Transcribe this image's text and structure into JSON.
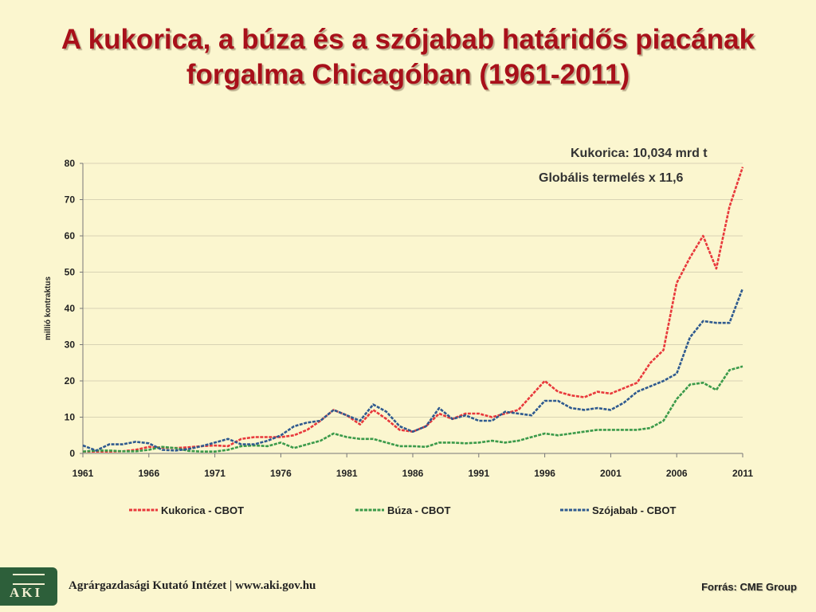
{
  "slide": {
    "title_line1": "A kukorica, a búza és a szójabab határidős  piacának",
    "title_line2": "forgalma Chicagóban (1961-2011)",
    "note_line1": "Kukorica: 10,034 mrd t",
    "note_line2": "Globális termelés x 11,6"
  },
  "footer": {
    "logo_text": "AKI",
    "institute": "Agrárgazdasági Kutató Intézet | www.aki.gov.hu",
    "source": "Forrás: CME Group"
  },
  "chart_data": {
    "type": "line",
    "ylabel": "millió kontraktus",
    "xlabel": "",
    "ylim": [
      0,
      80
    ],
    "yticks": [
      0,
      10,
      20,
      30,
      40,
      50,
      60,
      70,
      80
    ],
    "xlim": [
      1961,
      2011
    ],
    "xticks": [
      1961,
      1966,
      1971,
      1976,
      1981,
      1986,
      1991,
      1996,
      2001,
      2006,
      2011
    ],
    "grid": "horizontal",
    "legend_position": "bottom",
    "x": [
      1961,
      1962,
      1963,
      1964,
      1965,
      1966,
      1967,
      1968,
      1969,
      1970,
      1971,
      1972,
      1973,
      1974,
      1975,
      1976,
      1977,
      1978,
      1979,
      1980,
      1981,
      1982,
      1983,
      1984,
      1985,
      1986,
      1987,
      1988,
      1989,
      1990,
      1991,
      1992,
      1993,
      1994,
      1995,
      1996,
      1997,
      1998,
      1999,
      2000,
      2001,
      2002,
      2003,
      2004,
      2005,
      2006,
      2007,
      2008,
      2009,
      2010,
      2011
    ],
    "series": [
      {
        "name": "Kukorica - CBOT",
        "color": "#e8393c",
        "values": [
          0.5,
          0.5,
          0.5,
          0.6,
          1.0,
          1.8,
          1.6,
          1.5,
          1.7,
          2.0,
          2.2,
          2.0,
          4.0,
          4.5,
          4.5,
          4.5,
          5.0,
          6.5,
          9.0,
          12.0,
          10.5,
          8.0,
          12.0,
          9.5,
          6.5,
          6.0,
          7.5,
          11.0,
          9.5,
          11.0,
          11.0,
          10.0,
          11.0,
          12.0,
          16.0,
          20.0,
          17.0,
          16.0,
          15.5,
          17.0,
          16.5,
          18.0,
          19.5,
          25.0,
          28.5,
          47.0,
          54.0,
          60.0,
          51.0,
          68.0,
          79.0
        ]
      },
      {
        "name": "Búza - CBOT",
        "color": "#3b9a4a",
        "values": [
          0.5,
          0.8,
          0.8,
          0.6,
          0.6,
          1.0,
          1.8,
          1.5,
          0.7,
          0.5,
          0.5,
          1.0,
          2.0,
          2.2,
          2.0,
          3.0,
          1.5,
          2.5,
          3.5,
          5.5,
          4.5,
          4.0,
          4.0,
          3.0,
          2.0,
          2.0,
          1.8,
          3.0,
          3.0,
          2.8,
          3.0,
          3.5,
          3.0,
          3.5,
          4.5,
          5.5,
          5.0,
          5.5,
          6.0,
          6.5,
          6.5,
          6.5,
          6.5,
          7.0,
          9.0,
          15.0,
          19.0,
          19.5,
          17.5,
          23.0,
          24.0
        ]
      },
      {
        "name": "Szójabab - CBOT",
        "color": "#2f5a8f",
        "values": [
          2.2,
          0.8,
          2.5,
          2.5,
          3.2,
          2.8,
          1.0,
          0.8,
          1.2,
          2.0,
          3.0,
          4.0,
          2.5,
          2.5,
          3.5,
          5.0,
          7.5,
          8.5,
          9.0,
          12.0,
          10.5,
          9.0,
          13.5,
          11.5,
          7.5,
          6.0,
          7.5,
          12.5,
          9.5,
          10.5,
          9.0,
          9.0,
          11.5,
          11.0,
          10.5,
          14.5,
          14.5,
          12.5,
          12.0,
          12.5,
          12.0,
          14.0,
          17.0,
          18.5,
          20.0,
          22.0,
          32.0,
          36.5,
          36.0,
          36.0,
          45.5
        ]
      }
    ]
  }
}
